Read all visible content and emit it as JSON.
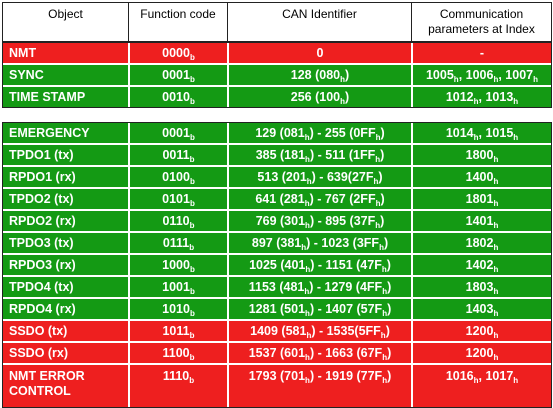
{
  "header": {
    "object": "Object",
    "function_code": "Function code",
    "can_identifier": "CAN Identifier",
    "comm_params": "Communication parameters at Index"
  },
  "colors": {
    "green": "#149a14",
    "red": "#ee1f1f"
  },
  "group1": [
    {
      "object": "NMT",
      "fc": "0000",
      "can": [
        {
          "t": "0"
        }
      ],
      "params": [
        {
          "t": "-"
        }
      ],
      "color": "red"
    },
    {
      "object": "SYNC",
      "fc": "0001",
      "can": [
        {
          "t": "128 (080"
        },
        {
          "s": "h"
        },
        {
          "t": ")"
        }
      ],
      "params": [
        {
          "t": "1005"
        },
        {
          "s": "h"
        },
        {
          "t": ", 1006"
        },
        {
          "s": "h"
        },
        {
          "t": ", 1007"
        },
        {
          "s": "h"
        }
      ],
      "color": "green"
    },
    {
      "object": "TIME STAMP",
      "fc": "0010",
      "can": [
        {
          "t": "256 (100"
        },
        {
          "s": "h"
        },
        {
          "t": ")"
        }
      ],
      "params": [
        {
          "t": "1012"
        },
        {
          "s": "h"
        },
        {
          "t": ", 1013"
        },
        {
          "s": "h"
        }
      ],
      "color": "green"
    }
  ],
  "group2": [
    {
      "object": "EMERGENCY",
      "fc": "0001",
      "can": [
        {
          "t": "129 (081"
        },
        {
          "s": "h"
        },
        {
          "t": ") - 255 (0FF"
        },
        {
          "s": "h"
        },
        {
          "t": ")"
        }
      ],
      "params": [
        {
          "t": "1014"
        },
        {
          "s": "h"
        },
        {
          "t": ", 1015"
        },
        {
          "s": "h"
        }
      ],
      "color": "green"
    },
    {
      "object": "TPDO1 (tx)",
      "fc": "0011",
      "can": [
        {
          "t": "385 (181"
        },
        {
          "s": "h"
        },
        {
          "t": ") - 511 (1FF"
        },
        {
          "s": "h"
        },
        {
          "t": ")"
        }
      ],
      "params": [
        {
          "t": "1800"
        },
        {
          "s": "h"
        }
      ],
      "color": "green"
    },
    {
      "object": "RPDO1 (rx)",
      "fc": "0100",
      "can": [
        {
          "t": "513 (201"
        },
        {
          "s": "h"
        },
        {
          "t": ") - 639(27F"
        },
        {
          "s": "h"
        },
        {
          "t": ")"
        }
      ],
      "params": [
        {
          "t": "1400"
        },
        {
          "s": "h"
        }
      ],
      "color": "green"
    },
    {
      "object": "TPDO2 (tx)",
      "fc": "0101",
      "can": [
        {
          "t": "641 (281"
        },
        {
          "s": "h"
        },
        {
          "t": ") - 767 (2FF"
        },
        {
          "s": "h"
        },
        {
          "t": ")"
        }
      ],
      "params": [
        {
          "t": "1801"
        },
        {
          "s": "h"
        }
      ],
      "color": "green"
    },
    {
      "object": "RPDO2 (rx)",
      "fc": "0110",
      "can": [
        {
          "t": "769 (301"
        },
        {
          "s": "h"
        },
        {
          "t": ") - 895 (37F"
        },
        {
          "s": "h"
        },
        {
          "t": ")"
        }
      ],
      "params": [
        {
          "t": "1401"
        },
        {
          "s": "h"
        }
      ],
      "color": "green"
    },
    {
      "object": "TPDO3 (tx)",
      "fc": "0111",
      "can": [
        {
          "t": "897 (381"
        },
        {
          "s": "h"
        },
        {
          "t": ") - 1023 (3FF"
        },
        {
          "s": "h"
        },
        {
          "t": ")"
        }
      ],
      "params": [
        {
          "t": "1802"
        },
        {
          "s": "h"
        }
      ],
      "color": "green"
    },
    {
      "object": "RPDO3 (rx)",
      "fc": "1000",
      "can": [
        {
          "t": "1025 (401"
        },
        {
          "s": "h"
        },
        {
          "t": ") - 1151 (47F"
        },
        {
          "s": "h"
        },
        {
          "t": ")"
        }
      ],
      "params": [
        {
          "t": "1402"
        },
        {
          "s": "h"
        }
      ],
      "color": "green"
    },
    {
      "object": "TPDO4 (tx)",
      "fc": "1001",
      "can": [
        {
          "t": "1153 (481"
        },
        {
          "s": "h"
        },
        {
          "t": ") - 1279 (4FF"
        },
        {
          "s": "h"
        },
        {
          "t": ")"
        }
      ],
      "params": [
        {
          "t": "1803"
        },
        {
          "s": "h"
        }
      ],
      "color": "green"
    },
    {
      "object": "RPDO4 (rx)",
      "fc": "1010",
      "can": [
        {
          "t": "1281 (501"
        },
        {
          "s": "h"
        },
        {
          "t": ") - 1407 (57F"
        },
        {
          "s": "h"
        },
        {
          "t": ")"
        }
      ],
      "params": [
        {
          "t": "1403"
        },
        {
          "s": "h"
        }
      ],
      "color": "green"
    },
    {
      "object": "SSDO (tx)",
      "fc": "1011",
      "can": [
        {
          "t": "1409 (581"
        },
        {
          "s": "h"
        },
        {
          "t": ") - 1535(5FF"
        },
        {
          "s": "h"
        },
        {
          "t": ")"
        }
      ],
      "params": [
        {
          "t": "1200"
        },
        {
          "s": "h"
        }
      ],
      "color": "red"
    },
    {
      "object": "SSDO (rx)",
      "fc": "1100",
      "can": [
        {
          "t": "1537 (601"
        },
        {
          "s": "h"
        },
        {
          "t": ") - 1663 (67F"
        },
        {
          "s": "h"
        },
        {
          "t": ")"
        }
      ],
      "params": [
        {
          "t": "1200"
        },
        {
          "s": "h"
        }
      ],
      "color": "red"
    },
    {
      "object": "NMT ERROR CONTROL",
      "fc": "1110",
      "can": [
        {
          "t": "1793 (701"
        },
        {
          "s": "h"
        },
        {
          "t": ") - 1919 (77F"
        },
        {
          "s": "h"
        },
        {
          "t": ")"
        }
      ],
      "params": [
        {
          "t": "1016"
        },
        {
          "s": "h"
        },
        {
          "t": ", 1017"
        },
        {
          "s": "h"
        }
      ],
      "color": "red",
      "tall": true
    }
  ],
  "fc_suffix": "b"
}
